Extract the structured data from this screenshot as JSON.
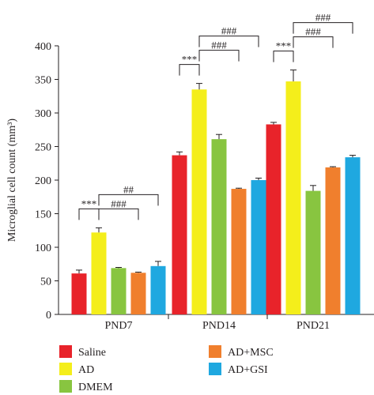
{
  "chart_data": {
    "type": "bar",
    "title": "",
    "xlabel": "",
    "ylabel": "Microglial cell count (mm³)",
    "ylim": [
      0,
      400
    ],
    "yticks": [
      0,
      50,
      100,
      150,
      200,
      250,
      300,
      350,
      400
    ],
    "grid": false,
    "legend_position": "bottom",
    "categories": [
      "PND7",
      "PND14",
      "PND21"
    ],
    "series": [
      {
        "name": "Saline",
        "color": "#e8232a",
        "values": [
          61,
          237,
          283
        ],
        "errors": [
          5,
          5,
          3
        ]
      },
      {
        "name": "AD",
        "color": "#f4ee1b",
        "values": [
          122,
          335,
          347
        ],
        "errors": [
          7,
          9,
          17
        ]
      },
      {
        "name": "DMEM",
        "color": "#88c540",
        "values": [
          69,
          261,
          184
        ],
        "errors": [
          1,
          7,
          8
        ]
      },
      {
        "name": "AD+MSC",
        "color": "#f07f2d",
        "values": [
          62,
          187,
          219
        ],
        "errors": [
          1,
          1,
          1
        ]
      },
      {
        "name": "AD+GSI",
        "color": "#1fa8e0",
        "values": [
          72,
          200,
          234
        ],
        "errors": [
          7,
          3,
          3
        ]
      }
    ],
    "significance": [
      {
        "group": 0,
        "from": 0,
        "to": 1,
        "label": "***",
        "level": 1
      },
      {
        "group": 0,
        "from": 1,
        "to": 3,
        "label": "###",
        "level": 1
      },
      {
        "group": 0,
        "from": 1,
        "to": 4,
        "label": "##",
        "level": 2
      },
      {
        "group": 1,
        "from": 0,
        "to": 1,
        "label": "***",
        "level": 1
      },
      {
        "group": 1,
        "from": 1,
        "to": 3,
        "label": "###",
        "level": 2
      },
      {
        "group": 1,
        "from": 1,
        "to": 4,
        "label": "###",
        "level": 3
      },
      {
        "group": 2,
        "from": 0,
        "to": 1,
        "label": "***",
        "level": 1
      },
      {
        "group": 2,
        "from": 1,
        "to": 3,
        "label": "###",
        "level": 2
      },
      {
        "group": 2,
        "from": 1,
        "to": 4,
        "label": "###",
        "level": 3
      }
    ]
  }
}
